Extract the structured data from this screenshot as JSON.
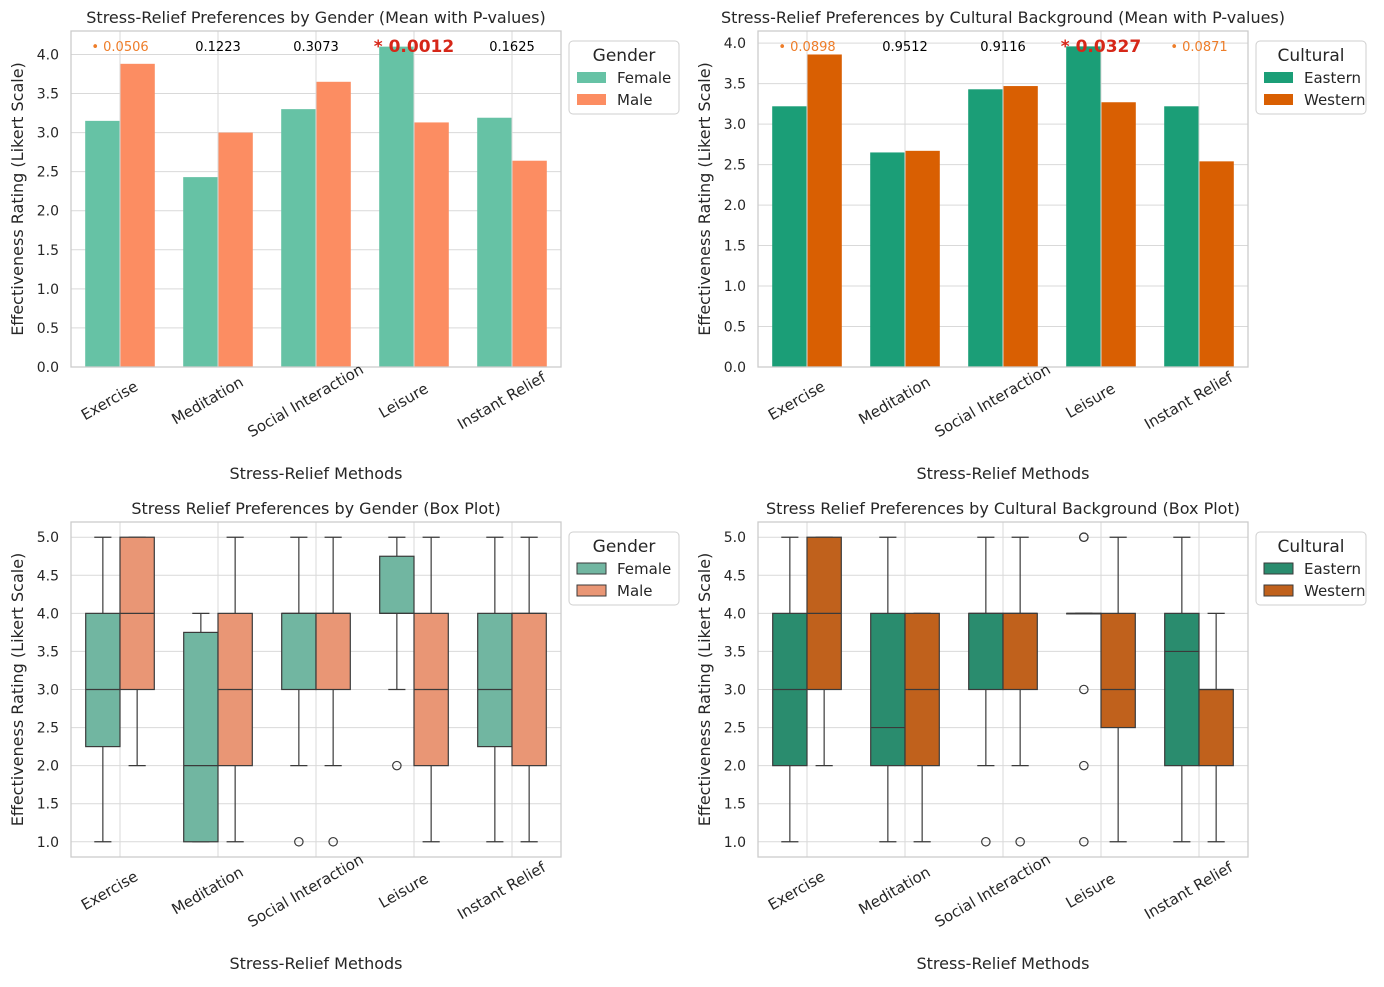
{
  "chart_data": [
    {
      "type": "bar",
      "title": "Stress-Relief Preferences by Gender (Mean with P-values)",
      "xlabel": "Stress-Relief Methods",
      "ylabel": "Effectiveness Rating (Likert Scale)",
      "ylim": [
        0,
        4.3
      ],
      "yticks": [
        0.0,
        0.5,
        1.0,
        1.5,
        2.0,
        2.5,
        3.0,
        3.5,
        4.0
      ],
      "ytick_labels": [
        "0.0",
        "0.5",
        "1.0",
        "1.5",
        "2.0",
        "2.5",
        "3.0",
        "3.5",
        "4.0"
      ],
      "categories": [
        "Exercise",
        "Meditation",
        "Social Interaction",
        "Leisure",
        "Instant Relief"
      ],
      "series": [
        {
          "name": "Female",
          "color": "#66c2a5",
          "values": [
            3.15,
            2.43,
            3.3,
            4.1,
            3.19
          ]
        },
        {
          "name": "Male",
          "color": "#fc8d62",
          "values": [
            3.88,
            3.0,
            3.65,
            3.13,
            2.64
          ]
        }
      ],
      "pvalue_labels": [
        "• 0.0506",
        "0.1223",
        "0.3073",
        "* 0.0012",
        "0.1625"
      ],
      "pvalue_levels": [
        "marginal",
        "ns",
        "ns",
        "sig",
        "ns"
      ],
      "legend": {
        "title": "Gender",
        "placement": "outside-upper-right"
      },
      "grid": true
    },
    {
      "type": "bar",
      "title": "Stress-Relief Preferences by Cultural Background (Mean with P-values)",
      "xlabel": "Stress-Relief Methods",
      "ylabel": "Effectiveness Rating (Likert Scale)",
      "ylim": [
        0,
        4.15
      ],
      "yticks": [
        0.0,
        0.5,
        1.0,
        1.5,
        2.0,
        2.5,
        3.0,
        3.5,
        4.0
      ],
      "ytick_labels": [
        "0.0",
        "0.5",
        "1.0",
        "1.5",
        "2.0",
        "2.5",
        "3.0",
        "3.5",
        "4.0"
      ],
      "categories": [
        "Exercise",
        "Meditation",
        "Social Interaction",
        "Leisure",
        "Instant Relief"
      ],
      "series": [
        {
          "name": "Eastern",
          "color": "#1b9e77",
          "values": [
            3.22,
            2.65,
            3.43,
            3.96,
            3.22
          ]
        },
        {
          "name": "Western",
          "color": "#d95f02",
          "values": [
            3.86,
            2.67,
            3.47,
            3.27,
            2.54
          ]
        }
      ],
      "pvalue_labels": [
        "• 0.0898",
        "0.9512",
        "0.9116",
        "* 0.0327",
        "• 0.0871"
      ],
      "pvalue_levels": [
        "marginal",
        "ns",
        "ns",
        "sig",
        "marginal"
      ],
      "legend": {
        "title": "Cultural",
        "placement": "outside-upper-right"
      },
      "grid": true
    },
    {
      "type": "box",
      "title": "Stress Relief Preferences by Gender (Box Plot)",
      "xlabel": "Stress-Relief Methods",
      "ylabel": "Effectiveness Rating (Likert Scale)",
      "ylim": [
        0.8,
        5.2
      ],
      "yticks": [
        1.0,
        1.5,
        2.0,
        2.5,
        3.0,
        3.5,
        4.0,
        4.5,
        5.0
      ],
      "ytick_labels": [
        "1.0",
        "1.5",
        "2.0",
        "2.5",
        "3.0",
        "3.5",
        "4.0",
        "4.5",
        "5.0"
      ],
      "categories": [
        "Exercise",
        "Meditation",
        "Social Interaction",
        "Leisure",
        "Instant Relief"
      ],
      "series": [
        {
          "name": "Female",
          "color": "#71b6a1",
          "boxes": [
            {
              "whislo": 1,
              "q1": 2.25,
              "med": 3,
              "q3": 4,
              "whishi": 5,
              "fliers": []
            },
            {
              "whislo": 1,
              "q1": 1,
              "med": 2,
              "q3": 3.75,
              "whishi": 4,
              "fliers": []
            },
            {
              "whislo": 2,
              "q1": 3,
              "med": 4,
              "q3": 4,
              "whishi": 5,
              "fliers": [
                1
              ]
            },
            {
              "whislo": 3,
              "q1": 4,
              "med": 4,
              "q3": 4.75,
              "whishi": 5,
              "fliers": [
                2
              ]
            },
            {
              "whislo": 1,
              "q1": 2.25,
              "med": 3,
              "q3": 4,
              "whishi": 5,
              "fliers": []
            }
          ]
        },
        {
          "name": "Male",
          "color": "#e99675",
          "boxes": [
            {
              "whislo": 2,
              "q1": 3,
              "med": 4,
              "q3": 5,
              "whishi": 5,
              "fliers": []
            },
            {
              "whislo": 1,
              "q1": 2,
              "med": 3,
              "q3": 4,
              "whishi": 5,
              "fliers": []
            },
            {
              "whislo": 2,
              "q1": 3,
              "med": 4,
              "q3": 4,
              "whishi": 5,
              "fliers": [
                1
              ]
            },
            {
              "whislo": 1,
              "q1": 2,
              "med": 3,
              "q3": 4,
              "whishi": 5,
              "fliers": []
            },
            {
              "whislo": 1,
              "q1": 2,
              "med": 4,
              "q3": 4,
              "whishi": 5,
              "fliers": []
            }
          ]
        }
      ],
      "legend": {
        "title": "Gender",
        "placement": "outside-upper-right"
      },
      "grid": true
    },
    {
      "type": "box",
      "title": "Stress Relief Preferences by Cultural Background (Box Plot)",
      "xlabel": "Stress-Relief Methods",
      "ylabel": "Effectiveness Rating (Likert Scale)",
      "ylim": [
        0.8,
        5.2
      ],
      "yticks": [
        1.0,
        1.5,
        2.0,
        2.5,
        3.0,
        3.5,
        4.0,
        4.5,
        5.0
      ],
      "ytick_labels": [
        "1.0",
        "1.5",
        "2.0",
        "2.5",
        "3.0",
        "3.5",
        "4.0",
        "4.5",
        "5.0"
      ],
      "categories": [
        "Exercise",
        "Meditation",
        "Social Interaction",
        "Leisure",
        "Instant Relief"
      ],
      "series": [
        {
          "name": "Eastern",
          "color": "#2a8c6e",
          "boxes": [
            {
              "whislo": 1,
              "q1": 2,
              "med": 3,
              "q3": 4,
              "whishi": 5,
              "fliers": []
            },
            {
              "whislo": 1,
              "q1": 2,
              "med": 2.5,
              "q3": 4,
              "whishi": 5,
              "fliers": []
            },
            {
              "whislo": 2,
              "q1": 3,
              "med": 4,
              "q3": 4,
              "whishi": 5,
              "fliers": [
                1
              ]
            },
            {
              "whislo": 4,
              "q1": 4,
              "med": 4,
              "q3": 4,
              "whishi": 4,
              "fliers": [
                5,
                5,
                3,
                2,
                1
              ]
            },
            {
              "whislo": 1,
              "q1": 2,
              "med": 3.5,
              "q3": 4,
              "whishi": 5,
              "fliers": []
            }
          ]
        },
        {
          "name": "Western",
          "color": "#c0611c",
          "boxes": [
            {
              "whislo": 2,
              "q1": 3,
              "med": 4,
              "q3": 5,
              "whishi": 5,
              "fliers": []
            },
            {
              "whislo": 1,
              "q1": 2,
              "med": 3,
              "q3": 4,
              "whishi": 4,
              "fliers": []
            },
            {
              "whislo": 2,
              "q1": 3,
              "med": 4,
              "q3": 4,
              "whishi": 5,
              "fliers": [
                1
              ]
            },
            {
              "whislo": 1,
              "q1": 2.5,
              "med": 3,
              "q3": 4,
              "whishi": 5,
              "fliers": []
            },
            {
              "whislo": 1,
              "q1": 2,
              "med": 3,
              "q3": 3,
              "whishi": 4,
              "fliers": []
            }
          ]
        }
      ],
      "legend": {
        "title": "Cultural",
        "placement": "outside-upper-right"
      },
      "grid": true
    }
  ],
  "style": {
    "grid_color": "#d9d9d9",
    "spine_color": "#cccccc",
    "text_color": "#262626",
    "box_edge_color": "#3a3a3a",
    "pvalue_colors": {
      "sig": "#d62718",
      "marginal": "#ee7d29",
      "ns": "#000000"
    }
  }
}
